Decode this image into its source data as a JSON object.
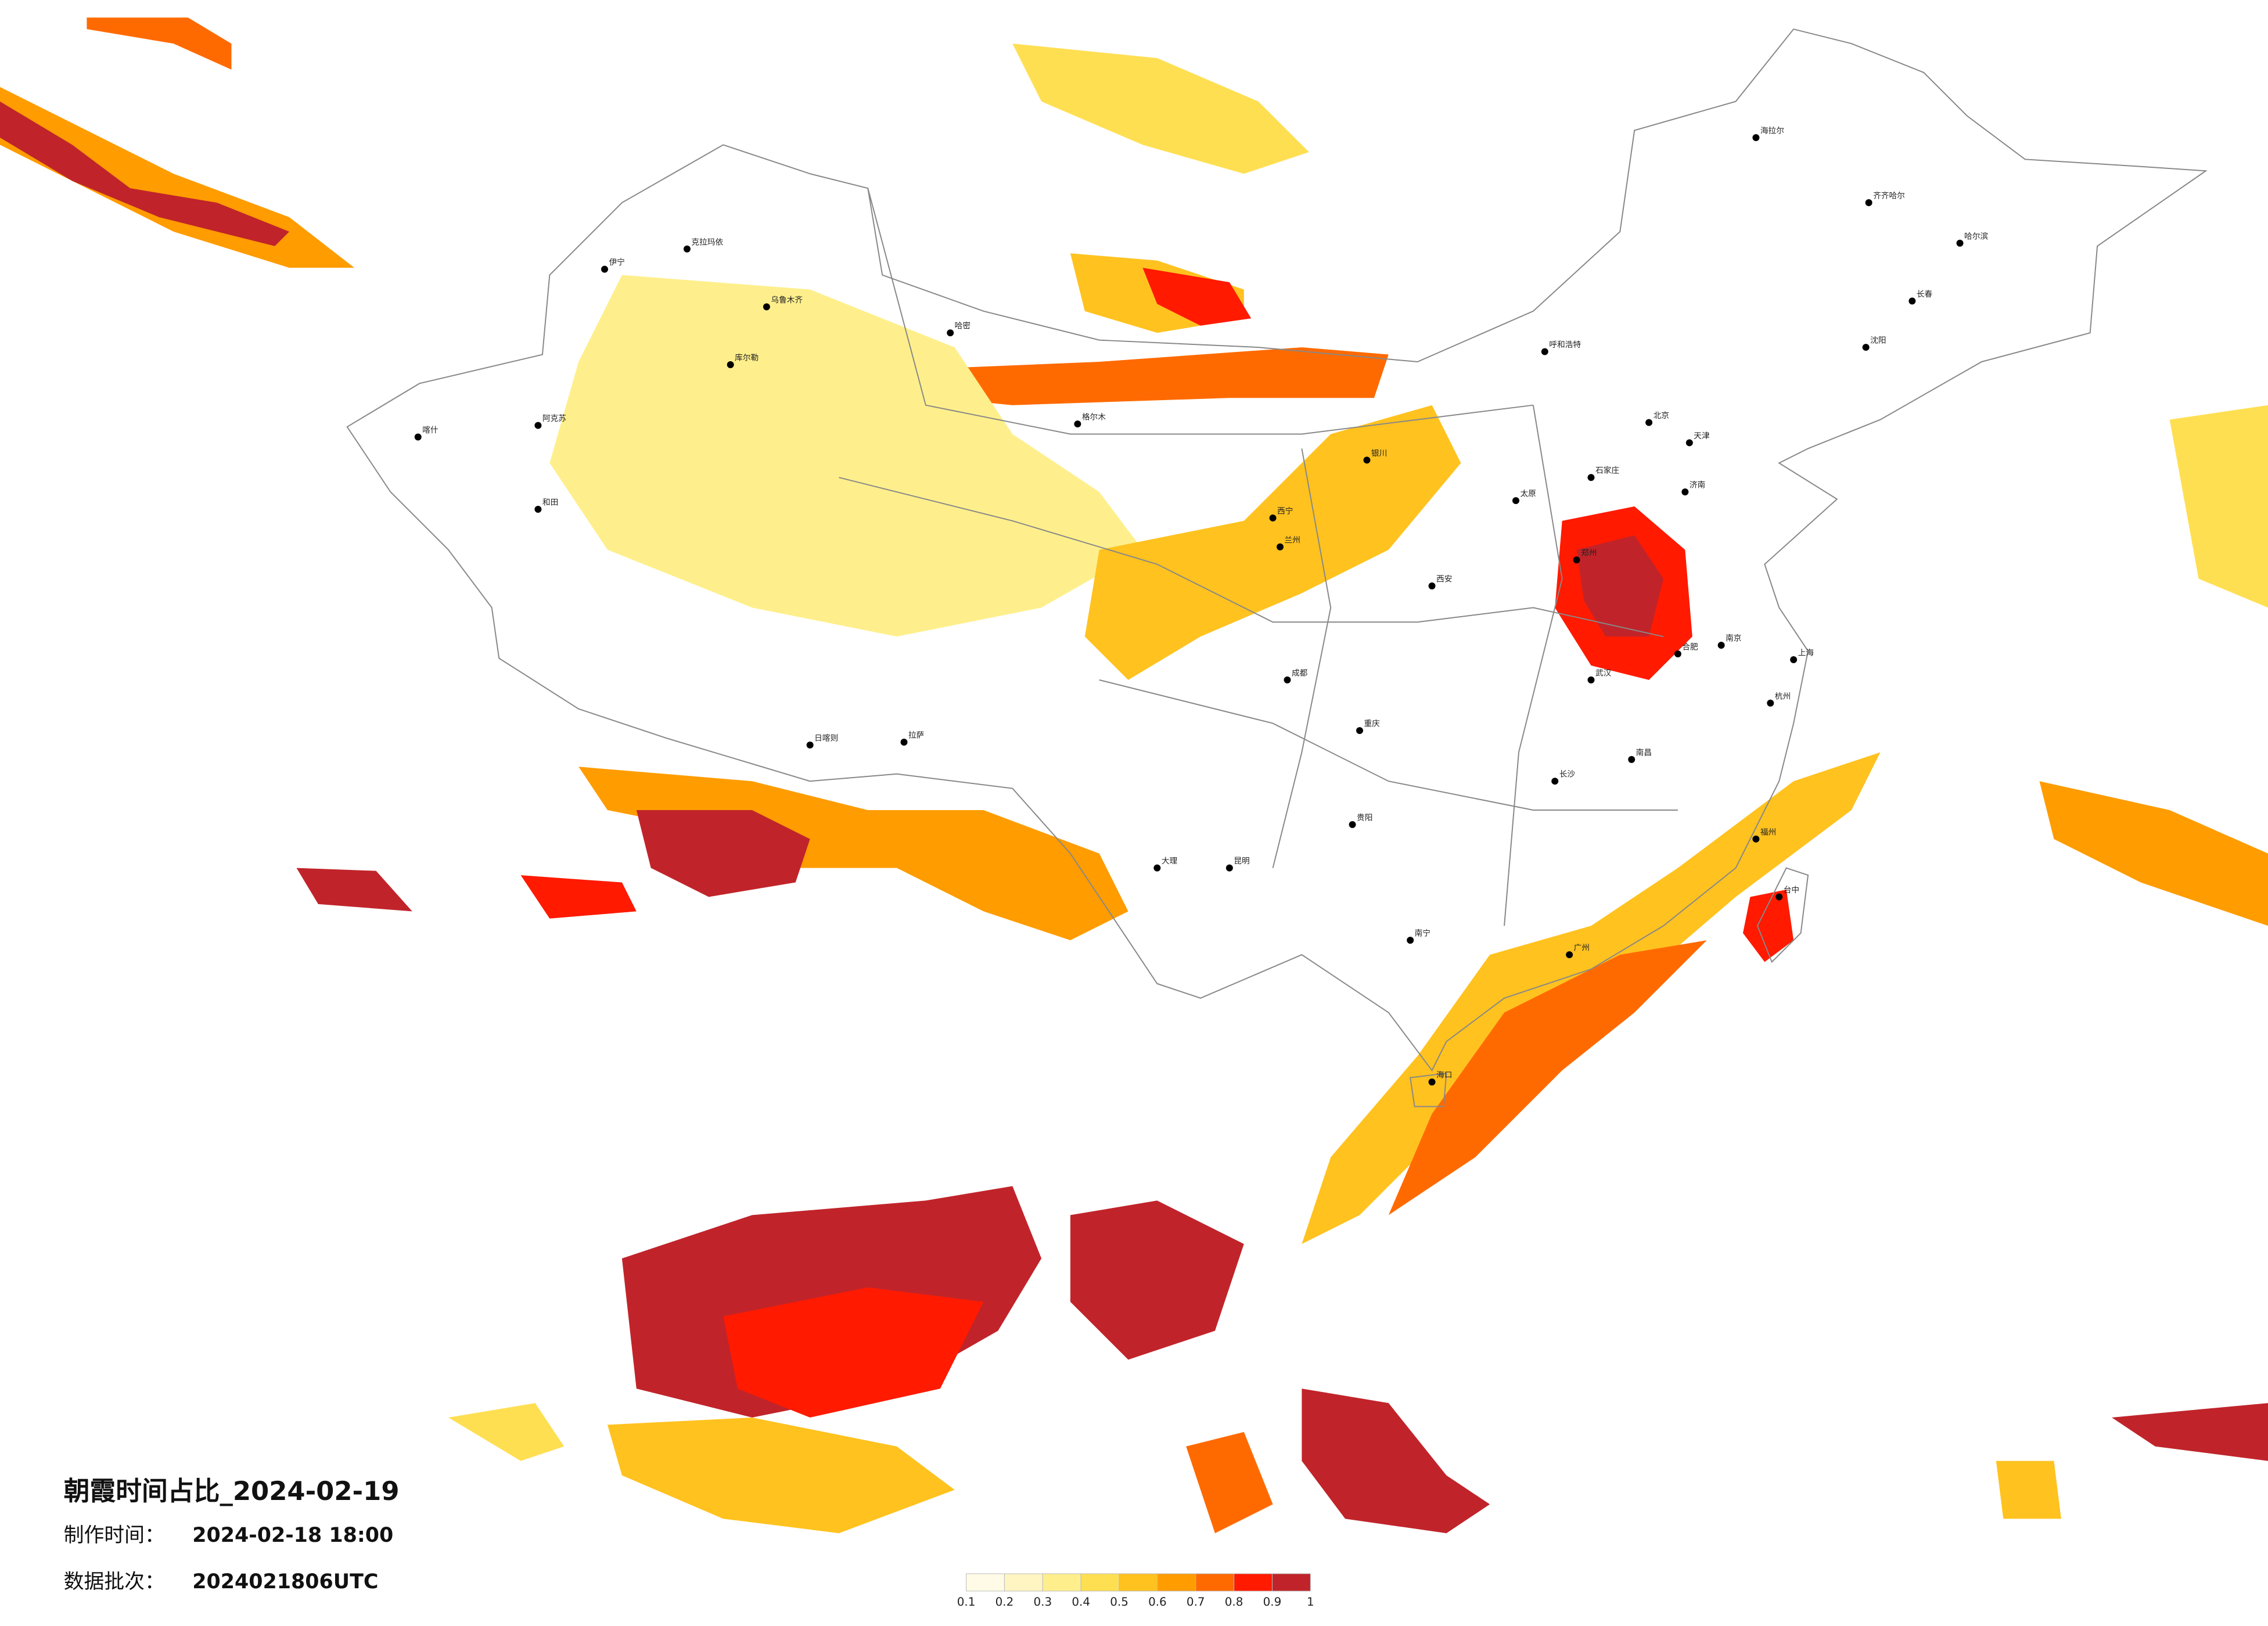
{
  "title": "朝霞时间占比_2024-02-19",
  "production_time": {
    "label": "制作时间：",
    "value": "2024-02-18 18:00"
  },
  "batch": {
    "label": "数据批次：",
    "value": "2024021806UTC"
  },
  "legend": {
    "ticks": [
      0.1,
      0.2,
      0.3,
      0.4,
      0.5,
      0.6,
      0.7,
      0.8,
      0.9,
      1
    ],
    "colors": [
      "#fffbe6",
      "#fff5c2",
      "#ffef8c",
      "#ffdf52",
      "#ffc21f",
      "#ff9c00",
      "#ff6a00",
      "#ff1a00",
      "#c0242a"
    ]
  },
  "cities": [
    "海拉尔",
    "齐齐哈尔",
    "哈尔滨",
    "长春",
    "沈阳",
    "北京",
    "天津",
    "石家庄",
    "太原",
    "呼和浩特",
    "银川",
    "西宁",
    "兰州",
    "西安",
    "郑州",
    "济南",
    "南京",
    "上海",
    "杭州",
    "合肥",
    "武汉",
    "长沙",
    "南昌",
    "福州",
    "广州",
    "南宁",
    "贵阳",
    "昆明",
    "成都",
    "重庆",
    "拉萨",
    "乌鲁木齐",
    "克拉玛依",
    "喀什",
    "哈密",
    "库尔勒",
    "和田",
    "格尔木",
    "日喀则",
    "大理",
    "台中",
    "海口",
    "阿克苏",
    "伊宁"
  ]
}
